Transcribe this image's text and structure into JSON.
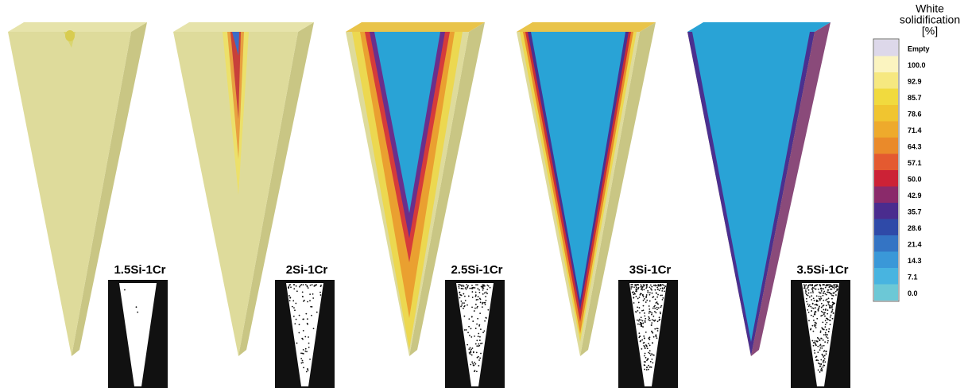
{
  "panels": [
    {
      "label": "1.5Si-1Cr"
    },
    {
      "label": "2Si-1Cr"
    },
    {
      "label": "2.5Si-1Cr"
    },
    {
      "label": "3Si-1Cr"
    },
    {
      "label": "3.5Si-1Cr"
    }
  ],
  "legend": {
    "title_lines": [
      "White",
      "solidification",
      "[%]"
    ],
    "entries": [
      "Empty",
      "100.0",
      "92.9",
      "85.7",
      "78.6",
      "71.4",
      "64.3",
      "57.1",
      "50.0",
      "42.9",
      "35.7",
      "28.6",
      "21.4",
      "14.3",
      "7.1",
      "0.0"
    ]
  }
}
